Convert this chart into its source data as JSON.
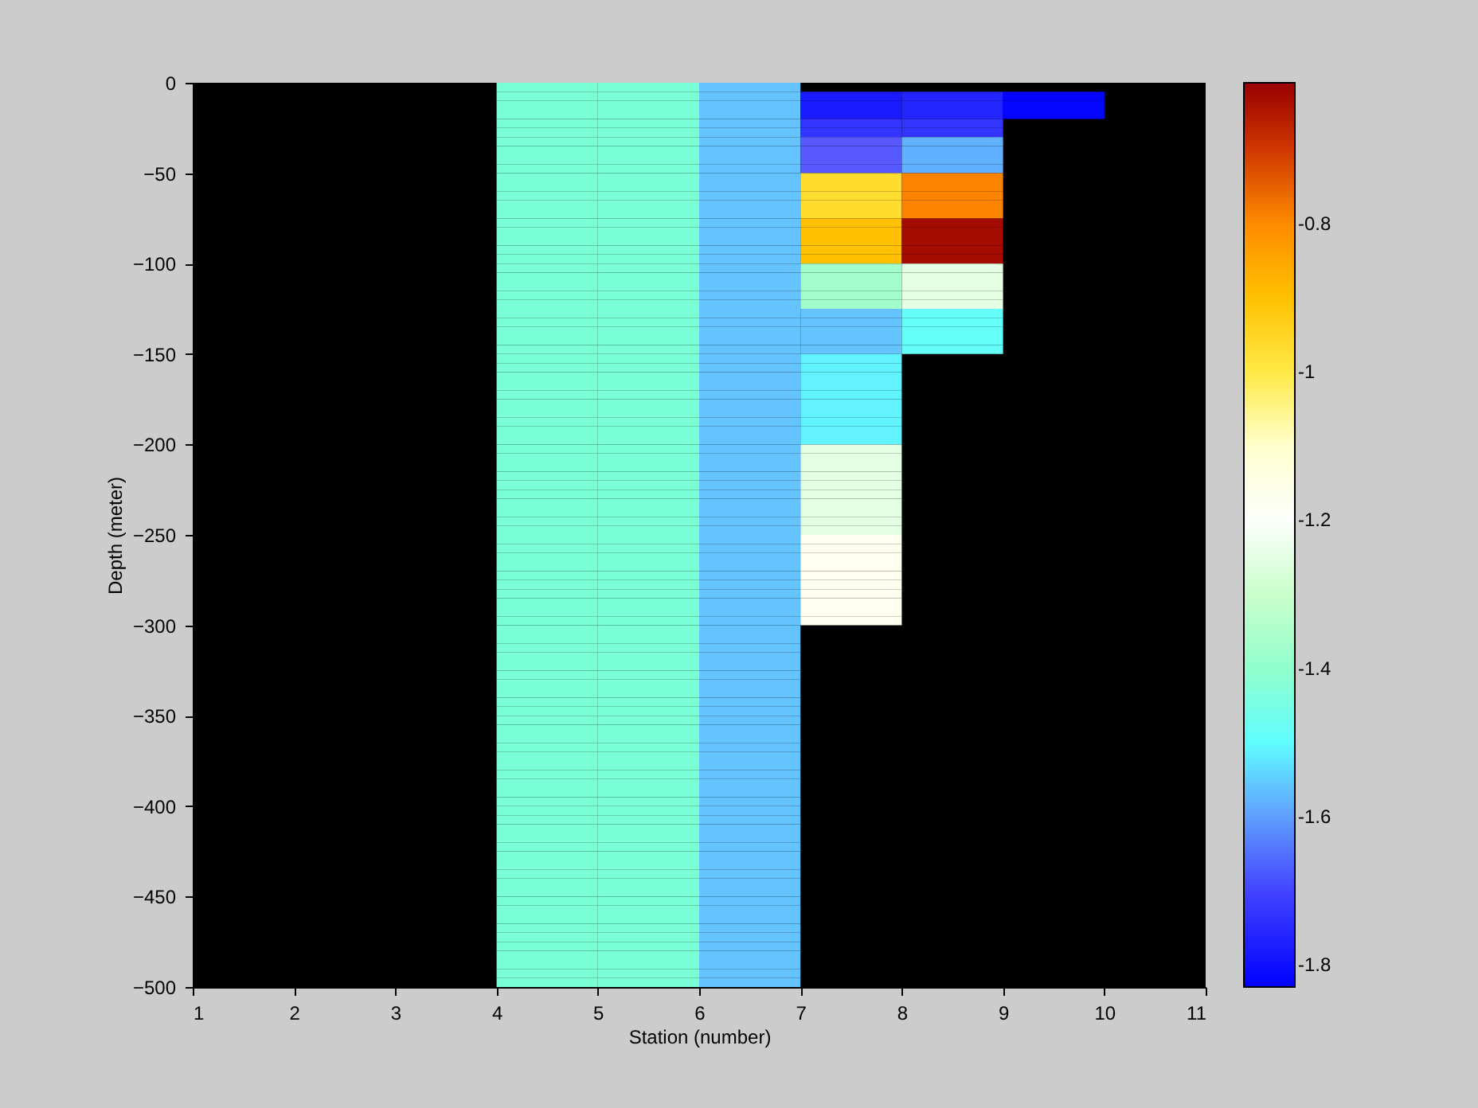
{
  "chart_data": {
    "type": "heatmap",
    "xlabel": "Station (number)",
    "ylabel": "Depth (meter)",
    "cells": [
      [
        null,
        null,
        null,
        -1.44,
        -1.44,
        -1.56,
        null,
        null,
        null,
        null
      ],
      [
        null,
        null,
        null,
        -1.44,
        -1.44,
        -1.56,
        -1.78,
        -1.76,
        -1.82,
        null
      ],
      [
        null,
        null,
        null,
        -1.44,
        -1.44,
        -1.56,
        -1.78,
        -1.76,
        -1.82,
        null
      ],
      [
        null,
        null,
        null,
        -1.44,
        -1.44,
        -1.56,
        -1.78,
        -1.76,
        -1.82,
        null
      ],
      [
        null,
        null,
        null,
        -1.44,
        -1.44,
        -1.56,
        -1.73,
        -1.73,
        null,
        null
      ],
      [
        null,
        null,
        null,
        -1.44,
        -1.44,
        -1.56,
        -1.73,
        -1.73,
        null,
        null
      ],
      [
        null,
        null,
        null,
        -1.44,
        -1.44,
        -1.56,
        -1.67,
        -1.58,
        null,
        null
      ],
      [
        null,
        null,
        null,
        -1.44,
        -1.44,
        -1.56,
        -1.67,
        -1.58,
        null,
        null
      ],
      [
        null,
        null,
        null,
        -1.44,
        -1.44,
        -1.56,
        -1.67,
        -1.58,
        null,
        null
      ],
      [
        null,
        null,
        null,
        -1.44,
        -1.44,
        -1.56,
        -1.67,
        -1.58,
        null,
        null
      ],
      [
        null,
        null,
        null,
        -1.44,
        -1.44,
        -1.56,
        -0.97,
        -0.79,
        null,
        null
      ],
      [
        null,
        null,
        null,
        -1.44,
        -1.44,
        -1.56,
        -0.97,
        -0.79,
        null,
        null
      ],
      [
        null,
        null,
        null,
        -1.44,
        -1.44,
        -1.56,
        -0.97,
        -0.79,
        null,
        null
      ],
      [
        null,
        null,
        null,
        -1.44,
        -1.44,
        -1.56,
        -0.97,
        -0.79,
        null,
        null
      ],
      [
        null,
        null,
        null,
        -1.44,
        -1.44,
        -1.56,
        -0.97,
        -0.79,
        null,
        null
      ],
      [
        null,
        null,
        null,
        -1.44,
        -1.44,
        -1.56,
        -0.9,
        -0.63,
        null,
        null
      ],
      [
        null,
        null,
        null,
        -1.44,
        -1.44,
        -1.56,
        -0.9,
        -0.63,
        null,
        null
      ],
      [
        null,
        null,
        null,
        -1.44,
        -1.44,
        -1.56,
        -0.9,
        -0.63,
        null,
        null
      ],
      [
        null,
        null,
        null,
        -1.44,
        -1.44,
        -1.56,
        -0.9,
        -0.63,
        null,
        null
      ],
      [
        null,
        null,
        null,
        -1.44,
        -1.44,
        -1.56,
        -0.9,
        -0.63,
        null,
        null
      ],
      [
        null,
        null,
        null,
        -1.44,
        -1.44,
        -1.56,
        -1.37,
        -1.25,
        null,
        null
      ],
      [
        null,
        null,
        null,
        -1.44,
        -1.44,
        -1.56,
        -1.37,
        -1.25,
        null,
        null
      ],
      [
        null,
        null,
        null,
        -1.44,
        -1.44,
        -1.56,
        -1.37,
        -1.25,
        null,
        null
      ],
      [
        null,
        null,
        null,
        -1.44,
        -1.44,
        -1.56,
        -1.37,
        -1.25,
        null,
        null
      ],
      [
        null,
        null,
        null,
        -1.44,
        -1.44,
        -1.56,
        -1.37,
        -1.25,
        null,
        null
      ],
      [
        null,
        null,
        null,
        -1.44,
        -1.44,
        -1.56,
        -1.56,
        -1.49,
        null,
        null
      ],
      [
        null,
        null,
        null,
        -1.44,
        -1.44,
        -1.56,
        -1.56,
        -1.49,
        null,
        null
      ],
      [
        null,
        null,
        null,
        -1.44,
        -1.44,
        -1.56,
        -1.56,
        -1.49,
        null,
        null
      ],
      [
        null,
        null,
        null,
        -1.44,
        -1.44,
        -1.56,
        -1.56,
        -1.49,
        null,
        null
      ],
      [
        null,
        null,
        null,
        -1.44,
        -1.44,
        -1.56,
        -1.56,
        -1.49,
        null,
        null
      ],
      [
        null,
        null,
        null,
        -1.44,
        -1.44,
        -1.56,
        -1.51,
        null,
        null,
        null
      ],
      [
        null,
        null,
        null,
        -1.44,
        -1.44,
        -1.56,
        -1.51,
        null,
        null,
        null
      ],
      [
        null,
        null,
        null,
        -1.44,
        -1.44,
        -1.56,
        -1.51,
        null,
        null,
        null
      ],
      [
        null,
        null,
        null,
        -1.44,
        -1.44,
        -1.56,
        -1.51,
        null,
        null,
        null
      ],
      [
        null,
        null,
        null,
        -1.44,
        -1.44,
        -1.56,
        -1.51,
        null,
        null,
        null
      ],
      [
        null,
        null,
        null,
        -1.44,
        -1.44,
        -1.56,
        -1.51,
        null,
        null,
        null
      ],
      [
        null,
        null,
        null,
        -1.44,
        -1.44,
        -1.56,
        -1.51,
        null,
        null,
        null
      ],
      [
        null,
        null,
        null,
        -1.44,
        -1.44,
        -1.56,
        -1.51,
        null,
        null,
        null
      ],
      [
        null,
        null,
        null,
        -1.44,
        -1.44,
        -1.56,
        -1.51,
        null,
        null,
        null
      ],
      [
        null,
        null,
        null,
        -1.44,
        -1.44,
        -1.56,
        -1.51,
        null,
        null,
        null
      ],
      [
        null,
        null,
        null,
        -1.44,
        -1.44,
        -1.56,
        -1.25,
        null,
        null,
        null
      ],
      [
        null,
        null,
        null,
        -1.44,
        -1.44,
        -1.56,
        -1.25,
        null,
        null,
        null
      ],
      [
        null,
        null,
        null,
        -1.44,
        -1.44,
        -1.56,
        -1.25,
        null,
        null,
        null
      ],
      [
        null,
        null,
        null,
        -1.44,
        -1.44,
        -1.56,
        -1.25,
        null,
        null,
        null
      ],
      [
        null,
        null,
        null,
        -1.44,
        -1.44,
        -1.56,
        -1.25,
        null,
        null,
        null
      ],
      [
        null,
        null,
        null,
        -1.44,
        -1.44,
        -1.56,
        -1.25,
        null,
        null,
        null
      ],
      [
        null,
        null,
        null,
        -1.44,
        -1.44,
        -1.56,
        -1.25,
        null,
        null,
        null
      ],
      [
        null,
        null,
        null,
        -1.44,
        -1.44,
        -1.56,
        -1.25,
        null,
        null,
        null
      ],
      [
        null,
        null,
        null,
        -1.44,
        -1.44,
        -1.56,
        -1.25,
        null,
        null,
        null
      ],
      [
        null,
        null,
        null,
        -1.44,
        -1.44,
        -1.56,
        -1.25,
        null,
        null,
        null
      ],
      [
        null,
        null,
        null,
        -1.44,
        -1.44,
        -1.56,
        -1.17,
        null,
        null,
        null
      ],
      [
        null,
        null,
        null,
        -1.44,
        -1.44,
        -1.56,
        -1.17,
        null,
        null,
        null
      ],
      [
        null,
        null,
        null,
        -1.44,
        -1.44,
        -1.56,
        -1.17,
        null,
        null,
        null
      ],
      [
        null,
        null,
        null,
        -1.44,
        -1.44,
        -1.56,
        -1.17,
        null,
        null,
        null
      ],
      [
        null,
        null,
        null,
        -1.44,
        -1.44,
        -1.56,
        -1.17,
        null,
        null,
        null
      ],
      [
        null,
        null,
        null,
        -1.44,
        -1.44,
        -1.56,
        -1.17,
        null,
        null,
        null
      ],
      [
        null,
        null,
        null,
        -1.44,
        -1.44,
        -1.56,
        -1.17,
        null,
        null,
        null
      ],
      [
        null,
        null,
        null,
        -1.44,
        -1.44,
        -1.56,
        -1.17,
        null,
        null,
        null
      ],
      [
        null,
        null,
        null,
        -1.44,
        -1.44,
        -1.56,
        -1.17,
        null,
        null,
        null
      ],
      [
        null,
        null,
        null,
        -1.44,
        -1.44,
        -1.56,
        -1.17,
        null,
        null,
        null
      ],
      [
        null,
        null,
        null,
        -1.44,
        -1.44,
        -1.56,
        null,
        null,
        null,
        null
      ],
      [
        null,
        null,
        null,
        -1.44,
        -1.44,
        -1.56,
        null,
        null,
        null,
        null
      ],
      [
        null,
        null,
        null,
        -1.44,
        -1.44,
        -1.56,
        null,
        null,
        null,
        null
      ],
      [
        null,
        null,
        null,
        -1.44,
        -1.44,
        -1.56,
        null,
        null,
        null,
        null
      ],
      [
        null,
        null,
        null,
        -1.44,
        -1.44,
        -1.56,
        null,
        null,
        null,
        null
      ],
      [
        null,
        null,
        null,
        -1.44,
        -1.44,
        -1.56,
        null,
        null,
        null,
        null
      ],
      [
        null,
        null,
        null,
        -1.44,
        -1.44,
        -1.56,
        null,
        null,
        null,
        null
      ],
      [
        null,
        null,
        null,
        -1.44,
        -1.44,
        -1.56,
        null,
        null,
        null,
        null
      ],
      [
        null,
        null,
        null,
        -1.44,
        -1.44,
        -1.56,
        null,
        null,
        null,
        null
      ],
      [
        null,
        null,
        null,
        -1.44,
        -1.44,
        -1.56,
        null,
        null,
        null,
        null
      ],
      [
        null,
        null,
        null,
        -1.44,
        -1.44,
        -1.56,
        null,
        null,
        null,
        null
      ],
      [
        null,
        null,
        null,
        -1.44,
        -1.44,
        -1.56,
        null,
        null,
        null,
        null
      ],
      [
        null,
        null,
        null,
        -1.44,
        -1.44,
        -1.56,
        null,
        null,
        null,
        null
      ],
      [
        null,
        null,
        null,
        -1.44,
        -1.44,
        -1.56,
        null,
        null,
        null,
        null
      ],
      [
        null,
        null,
        null,
        -1.44,
        -1.44,
        -1.56,
        null,
        null,
        null,
        null
      ],
      [
        null,
        null,
        null,
        -1.44,
        -1.44,
        -1.56,
        null,
        null,
        null,
        null
      ],
      [
        null,
        null,
        null,
        -1.44,
        -1.44,
        -1.56,
        null,
        null,
        null,
        null
      ],
      [
        null,
        null,
        null,
        -1.44,
        -1.44,
        -1.56,
        null,
        null,
        null,
        null
      ],
      [
        null,
        null,
        null,
        -1.44,
        -1.44,
        -1.56,
        null,
        null,
        null,
        null
      ],
      [
        null,
        null,
        null,
        -1.44,
        -1.44,
        -1.56,
        null,
        null,
        null,
        null
      ],
      [
        null,
        null,
        null,
        -1.44,
        -1.44,
        -1.56,
        null,
        null,
        null,
        null
      ],
      [
        null,
        null,
        null,
        -1.44,
        -1.44,
        -1.56,
        null,
        null,
        null,
        null
      ],
      [
        null,
        null,
        null,
        -1.44,
        -1.44,
        -1.56,
        null,
        null,
        null,
        null
      ],
      [
        null,
        null,
        null,
        -1.44,
        -1.44,
        -1.56,
        null,
        null,
        null,
        null
      ],
      [
        null,
        null,
        null,
        -1.44,
        -1.44,
        -1.56,
        null,
        null,
        null,
        null
      ],
      [
        null,
        null,
        null,
        -1.44,
        -1.44,
        -1.56,
        null,
        null,
        null,
        null
      ],
      [
        null,
        null,
        null,
        -1.44,
        -1.44,
        -1.56,
        null,
        null,
        null,
        null
      ],
      [
        null,
        null,
        null,
        -1.44,
        -1.44,
        -1.56,
        null,
        null,
        null,
        null
      ],
      [
        null,
        null,
        null,
        -1.44,
        -1.44,
        -1.56,
        null,
        null,
        null,
        null
      ],
      [
        null,
        null,
        null,
        -1.44,
        -1.44,
        -1.56,
        null,
        null,
        null,
        null
      ],
      [
        null,
        null,
        null,
        -1.44,
        -1.44,
        -1.56,
        null,
        null,
        null,
        null
      ],
      [
        null,
        null,
        null,
        -1.44,
        -1.44,
        -1.56,
        null,
        null,
        null,
        null
      ],
      [
        null,
        null,
        null,
        -1.44,
        -1.44,
        -1.56,
        null,
        null,
        null,
        null
      ],
      [
        null,
        null,
        null,
        -1.44,
        -1.44,
        -1.56,
        null,
        null,
        null,
        null
      ],
      [
        null,
        null,
        null,
        -1.44,
        -1.44,
        -1.56,
        null,
        null,
        null,
        null
      ],
      [
        null,
        null,
        null,
        -1.44,
        -1.44,
        -1.56,
        null,
        null,
        null,
        null
      ],
      [
        null,
        null,
        null,
        -1.44,
        -1.44,
        -1.56,
        null,
        null,
        null,
        null
      ],
      [
        null,
        null,
        null,
        -1.44,
        -1.44,
        -1.56,
        null,
        null,
        null,
        null
      ],
      [
        null,
        null,
        null,
        -1.44,
        -1.44,
        -1.56,
        null,
        null,
        null,
        null
      ],
      [
        null,
        null,
        null,
        -1.44,
        -1.44,
        -1.56,
        null,
        null,
        null,
        null
      ]
    ],
    "xlim": [
      1,
      11
    ],
    "xticks": [
      1,
      2,
      3,
      4,
      5,
      6,
      7,
      8,
      9,
      10,
      11
    ],
    "ylim": [
      -500,
      0
    ],
    "yticks": [
      0,
      -50,
      -100,
      -150,
      -200,
      -250,
      -300,
      -350,
      -400,
      -450,
      -500
    ],
    "clim": [
      -1.83,
      -0.61
    ],
    "cticks": [
      -0.8,
      -1,
      -1.2,
      -1.4,
      -1.6,
      -1.8
    ],
    "grid": false
  }
}
